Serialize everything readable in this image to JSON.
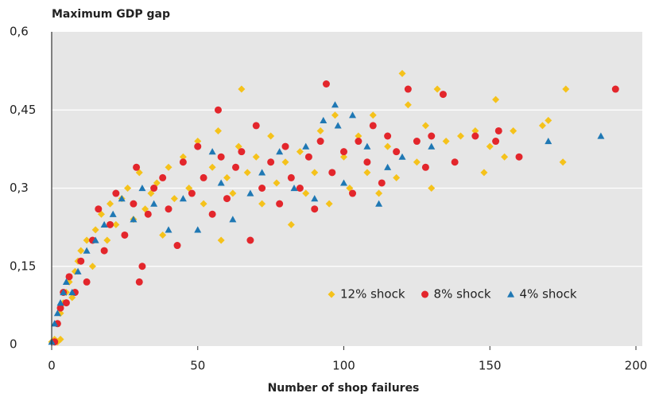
{
  "chart_data": {
    "type": "scatter",
    "title": "Maximum GDP gap",
    "x_label": "Number of shop failures",
    "xlim": [
      0,
      200
    ],
    "xticks": [
      0,
      50,
      100,
      150,
      200
    ],
    "ylim": [
      0,
      0.6
    ],
    "yticks": [
      {
        "value": 0,
        "label": "0"
      },
      {
        "value": 0.15,
        "label": "0,15"
      },
      {
        "value": 0.3,
        "label": "0,3"
      },
      {
        "value": 0.45,
        "label": "0,45"
      },
      {
        "value": 0.6,
        "label": "0,6"
      }
    ],
    "grid": true,
    "legend": "lower right",
    "series": [
      {
        "name": "12% shock",
        "color": "#f5c21b",
        "marker": "diamond",
        "x": [
          0,
          1,
          2,
          3,
          2,
          3,
          4,
          5,
          6,
          7,
          8,
          9,
          10,
          12,
          14,
          15,
          17,
          19,
          20,
          22,
          24,
          26,
          28,
          30,
          32,
          34,
          36,
          38,
          40,
          42,
          45,
          47,
          50,
          52,
          55,
          57,
          58,
          60,
          62,
          64,
          65,
          67,
          70,
          72,
          75,
          77,
          80,
          82,
          85,
          87,
          90,
          92,
          95,
          97,
          100,
          102,
          105,
          108,
          110,
          112,
          115,
          118,
          120,
          122,
          125,
          128,
          130,
          132,
          135,
          140,
          145,
          148,
          150,
          152,
          155,
          158,
          168,
          170,
          175,
          176
        ],
        "values": [
          0.005,
          0.01,
          0.005,
          0.01,
          0.04,
          0.06,
          0.08,
          0.1,
          0.12,
          0.09,
          0.14,
          0.16,
          0.18,
          0.2,
          0.15,
          0.22,
          0.25,
          0.2,
          0.27,
          0.23,
          0.28,
          0.3,
          0.24,
          0.33,
          0.26,
          0.29,
          0.31,
          0.21,
          0.34,
          0.28,
          0.36,
          0.3,
          0.39,
          0.27,
          0.34,
          0.41,
          0.2,
          0.32,
          0.29,
          0.38,
          0.49,
          0.33,
          0.36,
          0.27,
          0.4,
          0.31,
          0.35,
          0.23,
          0.37,
          0.29,
          0.33,
          0.41,
          0.27,
          0.44,
          0.36,
          0.3,
          0.4,
          0.33,
          0.44,
          0.29,
          0.38,
          0.32,
          0.52,
          0.46,
          0.35,
          0.42,
          0.3,
          0.49,
          0.39,
          0.4,
          0.41,
          0.33,
          0.38,
          0.47,
          0.36,
          0.41,
          0.42,
          0.43,
          0.35,
          0.49
        ]
      },
      {
        "name": "8% shock",
        "color": "#e3262c",
        "marker": "circle",
        "x": [
          1,
          2,
          3,
          4,
          5,
          6,
          8,
          10,
          12,
          14,
          16,
          18,
          20,
          22,
          25,
          28,
          29,
          30,
          31,
          33,
          35,
          38,
          40,
          43,
          45,
          48,
          50,
          52,
          55,
          57,
          58,
          60,
          63,
          65,
          68,
          70,
          72,
          75,
          78,
          80,
          82,
          85,
          88,
          90,
          92,
          94,
          96,
          100,
          103,
          105,
          108,
          110,
          113,
          115,
          118,
          122,
          125,
          128,
          130,
          134,
          138,
          145,
          152,
          153,
          160,
          193
        ],
        "values": [
          0.005,
          0.04,
          0.07,
          0.1,
          0.08,
          0.13,
          0.1,
          0.16,
          0.12,
          0.2,
          0.26,
          0.18,
          0.23,
          0.29,
          0.21,
          0.27,
          0.34,
          0.12,
          0.15,
          0.25,
          0.3,
          0.32,
          0.26,
          0.19,
          0.35,
          0.29,
          0.38,
          0.32,
          0.25,
          0.45,
          0.36,
          0.28,
          0.34,
          0.37,
          0.2,
          0.42,
          0.3,
          0.35,
          0.27,
          0.38,
          0.32,
          0.3,
          0.36,
          0.26,
          0.39,
          0.5,
          0.33,
          0.37,
          0.29,
          0.39,
          0.35,
          0.42,
          0.31,
          0.4,
          0.37,
          0.49,
          0.39,
          0.34,
          0.4,
          0.48,
          0.35,
          0.4,
          0.39,
          0.41,
          0.36,
          0.49
        ]
      },
      {
        "name": "4% shock",
        "color": "#1f78b4",
        "marker": "triangle",
        "x": [
          0,
          1,
          2,
          3,
          4,
          5,
          7,
          9,
          12,
          15,
          18,
          21,
          24,
          28,
          31,
          35,
          40,
          45,
          50,
          55,
          58,
          62,
          68,
          72,
          78,
          83,
          87,
          90,
          93,
          97,
          98,
          100,
          103,
          108,
          112,
          115,
          120,
          130,
          170,
          188
        ],
        "values": [
          0.005,
          0.04,
          0.06,
          0.08,
          0.1,
          0.12,
          0.1,
          0.14,
          0.18,
          0.2,
          0.23,
          0.25,
          0.28,
          0.24,
          0.3,
          0.27,
          0.22,
          0.28,
          0.22,
          0.37,
          0.31,
          0.24,
          0.29,
          0.33,
          0.37,
          0.3,
          0.38,
          0.28,
          0.43,
          0.46,
          0.42,
          0.31,
          0.44,
          0.38,
          0.27,
          0.34,
          0.36,
          0.38,
          0.39,
          0.4
        ]
      }
    ]
  }
}
